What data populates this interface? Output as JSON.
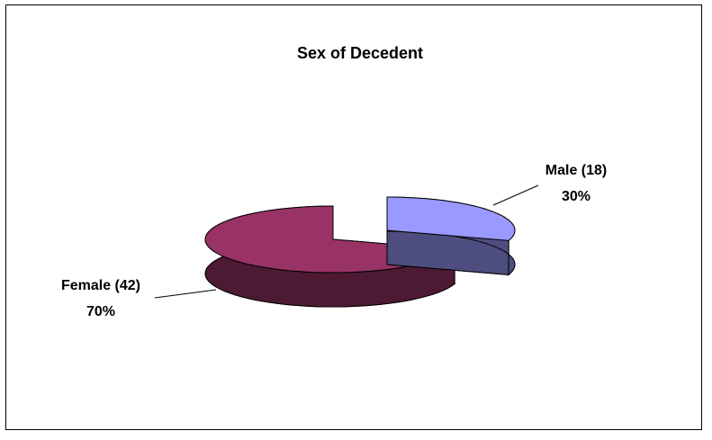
{
  "chart_data": {
    "type": "pie",
    "title": "Sex of Decedent",
    "categories": [
      "Male (18)",
      "Female (42)"
    ],
    "values": [
      30,
      70
    ],
    "value_labels": [
      "30%",
      "70%"
    ],
    "colors": [
      "#9999ff",
      "#993366"
    ]
  }
}
